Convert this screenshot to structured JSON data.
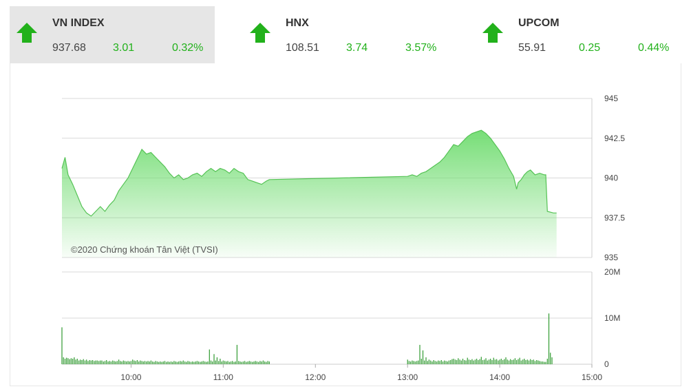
{
  "tabs": [
    {
      "name": "VN INDEX",
      "value": "937.68",
      "change": "3.01",
      "pct": "0.32%",
      "direction": "up",
      "active": true
    },
    {
      "name": "HNX",
      "value": "108.51",
      "change": "3.74",
      "pct": "3.57%",
      "direction": "up",
      "active": false
    },
    {
      "name": "UPCOM",
      "value": "55.91",
      "change": "0.25",
      "pct": "0.44%",
      "direction": "up",
      "active": false
    }
  ],
  "colors": {
    "up": "#22b11b",
    "area": "#72e072",
    "line": "#55c255",
    "volume": "#2f9a2f"
  },
  "chart_data": {
    "type": "area",
    "credit": "©2020 Chứng khoán Tân Việt (TVSI)",
    "price": {
      "ylim": [
        935,
        945
      ],
      "yticks": [
        "945",
        "942.5",
        "940",
        "937.5",
        "935"
      ],
      "points": [
        [
          "09:15",
          940.6
        ],
        [
          "09:17",
          941.3
        ],
        [
          "09:19",
          940.2
        ],
        [
          "09:22",
          939.6
        ],
        [
          "09:25",
          938.9
        ],
        [
          "09:28",
          938.2
        ],
        [
          "09:31",
          937.8
        ],
        [
          "09:34",
          937.6
        ],
        [
          "09:37",
          937.9
        ],
        [
          "09:40",
          938.2
        ],
        [
          "09:43",
          937.9
        ],
        [
          "09:46",
          938.3
        ],
        [
          "09:49",
          938.6
        ],
        [
          "09:52",
          939.2
        ],
        [
          "09:55",
          939.6
        ],
        [
          "09:58",
          940.0
        ],
        [
          "10:01",
          940.6
        ],
        [
          "10:04",
          941.2
        ],
        [
          "10:07",
          941.8
        ],
        [
          "10:10",
          941.5
        ],
        [
          "10:13",
          941.6
        ],
        [
          "10:16",
          941.3
        ],
        [
          "10:19",
          941.0
        ],
        [
          "10:22",
          940.7
        ],
        [
          "10:25",
          940.3
        ],
        [
          "10:28",
          940.0
        ],
        [
          "10:31",
          940.2
        ],
        [
          "10:34",
          939.9
        ],
        [
          "10:37",
          940.0
        ],
        [
          "10:40",
          940.2
        ],
        [
          "10:43",
          940.3
        ],
        [
          "10:46",
          940.1
        ],
        [
          "10:49",
          940.4
        ],
        [
          "10:52",
          940.6
        ],
        [
          "10:55",
          940.4
        ],
        [
          "10:58",
          940.6
        ],
        [
          "11:01",
          940.5
        ],
        [
          "11:04",
          940.3
        ],
        [
          "11:07",
          940.6
        ],
        [
          "11:10",
          940.4
        ],
        [
          "11:13",
          940.3
        ],
        [
          "11:16",
          939.9
        ],
        [
          "11:19",
          939.8
        ],
        [
          "11:22",
          939.7
        ],
        [
          "11:25",
          939.6
        ],
        [
          "11:28",
          939.8
        ],
        [
          "11:30",
          939.9
        ],
        [
          "13:00",
          940.1
        ],
        [
          "13:03",
          940.2
        ],
        [
          "13:06",
          940.1
        ],
        [
          "13:09",
          940.3
        ],
        [
          "13:12",
          940.4
        ],
        [
          "13:15",
          940.6
        ],
        [
          "13:18",
          940.8
        ],
        [
          "13:21",
          941.0
        ],
        [
          "13:24",
          941.3
        ],
        [
          "13:27",
          941.7
        ],
        [
          "13:30",
          942.1
        ],
        [
          "13:33",
          942.0
        ],
        [
          "13:36",
          942.3
        ],
        [
          "13:39",
          942.6
        ],
        [
          "13:42",
          942.8
        ],
        [
          "13:45",
          942.9
        ],
        [
          "13:48",
          943.0
        ],
        [
          "13:51",
          942.8
        ],
        [
          "13:54",
          942.5
        ],
        [
          "13:57",
          942.1
        ],
        [
          "14:00",
          941.7
        ],
        [
          "14:03",
          941.2
        ],
        [
          "14:06",
          940.6
        ],
        [
          "14:09",
          940.1
        ],
        [
          "14:11",
          939.3
        ],
        [
          "14:12",
          939.7
        ],
        [
          "14:14",
          939.9
        ],
        [
          "14:16",
          940.2
        ],
        [
          "14:18",
          940.4
        ],
        [
          "14:20",
          940.5
        ],
        [
          "14:23",
          940.2
        ],
        [
          "14:26",
          940.3
        ],
        [
          "14:29",
          940.2
        ],
        [
          "14:30",
          940.2
        ],
        [
          "14:31",
          937.9
        ],
        [
          "14:35",
          937.8
        ],
        [
          "14:37",
          937.8
        ]
      ]
    },
    "volume": {
      "ylim": [
        0,
        20
      ],
      "yticks": [
        "20M",
        "10M",
        "0"
      ],
      "unit": "M",
      "points": [
        [
          "09:15",
          8.0
        ],
        [
          "09:16",
          1.5
        ],
        [
          "09:17",
          1.2
        ],
        [
          "09:18",
          1.4
        ],
        [
          "09:19",
          1.3
        ],
        [
          "09:20",
          1.1
        ],
        [
          "09:21",
          1.3
        ],
        [
          "09:22",
          1.2
        ],
        [
          "09:23",
          1.5
        ],
        [
          "09:24",
          1.0
        ],
        [
          "09:25",
          1.2
        ],
        [
          "09:26",
          0.8
        ],
        [
          "09:27",
          1.0
        ],
        [
          "09:28",
          0.9
        ],
        [
          "09:29",
          1.1
        ],
        [
          "09:30",
          0.8
        ],
        [
          "09:31",
          1.0
        ],
        [
          "09:32",
          0.7
        ],
        [
          "09:33",
          0.9
        ],
        [
          "09:34",
          0.8
        ],
        [
          "09:35",
          0.9
        ],
        [
          "09:36",
          0.7
        ],
        [
          "09:37",
          0.8
        ],
        [
          "09:38",
          0.8
        ],
        [
          "09:39",
          0.7
        ],
        [
          "09:40",
          0.8
        ],
        [
          "09:41",
          0.8
        ],
        [
          "09:42",
          0.6
        ],
        [
          "09:43",
          0.7
        ],
        [
          "09:44",
          0.9
        ],
        [
          "09:45",
          0.6
        ],
        [
          "09:46",
          0.7
        ],
        [
          "09:47",
          0.6
        ],
        [
          "09:48",
          0.8
        ],
        [
          "09:49",
          0.7
        ],
        [
          "09:50",
          0.6
        ],
        [
          "09:51",
          0.7
        ],
        [
          "09:52",
          1.0
        ],
        [
          "09:53",
          0.7
        ],
        [
          "09:54",
          0.6
        ],
        [
          "09:55",
          0.8
        ],
        [
          "09:56",
          0.7
        ],
        [
          "09:57",
          0.6
        ],
        [
          "09:58",
          0.7
        ],
        [
          "09:59",
          0.6
        ],
        [
          "10:00",
          0.7
        ],
        [
          "10:01",
          1.0
        ],
        [
          "10:02",
          0.8
        ],
        [
          "10:03",
          0.7
        ],
        [
          "10:04",
          0.9
        ],
        [
          "10:05",
          0.6
        ],
        [
          "10:06",
          0.8
        ],
        [
          "10:07",
          0.7
        ],
        [
          "10:08",
          0.6
        ],
        [
          "10:09",
          0.7
        ],
        [
          "10:10",
          0.6
        ],
        [
          "10:11",
          0.7
        ],
        [
          "10:12",
          0.6
        ],
        [
          "10:13",
          0.8
        ],
        [
          "10:14",
          0.6
        ],
        [
          "10:15",
          0.5
        ],
        [
          "10:16",
          0.7
        ],
        [
          "10:17",
          0.6
        ],
        [
          "10:18",
          0.5
        ],
        [
          "10:19",
          0.6
        ],
        [
          "10:20",
          0.5
        ],
        [
          "10:21",
          0.6
        ],
        [
          "10:22",
          0.7
        ],
        [
          "10:23",
          0.5
        ],
        [
          "10:24",
          0.6
        ],
        [
          "10:25",
          0.5
        ],
        [
          "10:26",
          0.6
        ],
        [
          "10:27",
          0.5
        ],
        [
          "10:28",
          0.7
        ],
        [
          "10:29",
          0.6
        ],
        [
          "10:30",
          0.5
        ],
        [
          "10:31",
          0.6
        ],
        [
          "10:32",
          0.7
        ],
        [
          "10:33",
          0.6
        ],
        [
          "10:34",
          0.8
        ],
        [
          "10:35",
          0.6
        ],
        [
          "10:36",
          0.5
        ],
        [
          "10:37",
          0.7
        ],
        [
          "10:38",
          0.6
        ],
        [
          "10:39",
          0.5
        ],
        [
          "10:40",
          0.6
        ],
        [
          "10:41",
          0.5
        ],
        [
          "10:42",
          0.6
        ],
        [
          "10:43",
          0.7
        ],
        [
          "10:44",
          0.6
        ],
        [
          "10:45",
          0.5
        ],
        [
          "10:46",
          0.6
        ],
        [
          "10:47",
          0.7
        ],
        [
          "10:48",
          0.6
        ],
        [
          "10:49",
          0.5
        ],
        [
          "10:50",
          0.6
        ],
        [
          "10:51",
          3.2
        ],
        [
          "10:52",
          0.8
        ],
        [
          "10:53",
          0.6
        ],
        [
          "10:54",
          2.2
        ],
        [
          "10:55",
          0.8
        ],
        [
          "10:56",
          1.5
        ],
        [
          "10:57",
          0.7
        ],
        [
          "10:58",
          1.2
        ],
        [
          "10:59",
          0.6
        ],
        [
          "11:00",
          0.8
        ],
        [
          "11:01",
          0.7
        ],
        [
          "11:02",
          0.6
        ],
        [
          "11:03",
          0.7
        ],
        [
          "11:04",
          0.5
        ],
        [
          "11:05",
          0.6
        ],
        [
          "11:06",
          0.7
        ],
        [
          "11:07",
          0.5
        ],
        [
          "11:08",
          0.6
        ],
        [
          "11:09",
          4.2
        ],
        [
          "11:10",
          0.7
        ],
        [
          "11:11",
          0.6
        ],
        [
          "11:12",
          0.5
        ],
        [
          "11:13",
          0.6
        ],
        [
          "11:14",
          0.7
        ],
        [
          "11:15",
          0.5
        ],
        [
          "11:16",
          0.6
        ],
        [
          "11:17",
          0.7
        ],
        [
          "11:18",
          0.6
        ],
        [
          "11:19",
          0.5
        ],
        [
          "11:20",
          0.6
        ],
        [
          "11:21",
          0.7
        ],
        [
          "11:22",
          0.6
        ],
        [
          "11:23",
          0.5
        ],
        [
          "11:24",
          0.7
        ],
        [
          "11:25",
          0.6
        ],
        [
          "11:26",
          0.8
        ],
        [
          "11:27",
          0.6
        ],
        [
          "11:28",
          0.5
        ],
        [
          "11:29",
          0.7
        ],
        [
          "11:30",
          0.6
        ],
        [
          "13:00",
          1.0
        ],
        [
          "13:01",
          0.7
        ],
        [
          "13:02",
          0.6
        ],
        [
          "13:03",
          0.8
        ],
        [
          "13:04",
          0.7
        ],
        [
          "13:05",
          0.6
        ],
        [
          "13:06",
          0.7
        ],
        [
          "13:07",
          0.8
        ],
        [
          "13:08",
          4.2
        ],
        [
          "13:09",
          1.2
        ],
        [
          "13:10",
          3.0
        ],
        [
          "13:11",
          0.8
        ],
        [
          "13:12",
          1.5
        ],
        [
          "13:13",
          0.7
        ],
        [
          "13:14",
          1.0
        ],
        [
          "13:15",
          0.8
        ],
        [
          "13:16",
          0.6
        ],
        [
          "13:17",
          0.9
        ],
        [
          "13:18",
          0.7
        ],
        [
          "13:19",
          0.6
        ],
        [
          "13:20",
          0.8
        ],
        [
          "13:21",
          0.7
        ],
        [
          "13:22",
          0.9
        ],
        [
          "13:23",
          0.6
        ],
        [
          "13:24",
          0.8
        ],
        [
          "13:25",
          0.7
        ],
        [
          "13:26",
          0.6
        ],
        [
          "13:27",
          0.8
        ],
        [
          "13:28",
          0.9
        ],
        [
          "13:29",
          1.1
        ],
        [
          "13:30",
          1.2
        ],
        [
          "13:31",
          1.0
        ],
        [
          "13:32",
          0.9
        ],
        [
          "13:33",
          1.3
        ],
        [
          "13:34",
          1.0
        ],
        [
          "13:35",
          0.8
        ],
        [
          "13:36",
          1.2
        ],
        [
          "13:37",
          0.9
        ],
        [
          "13:38",
          0.8
        ],
        [
          "13:39",
          1.4
        ],
        [
          "13:40",
          1.0
        ],
        [
          "13:41",
          0.9
        ],
        [
          "13:42",
          1.1
        ],
        [
          "13:43",
          0.8
        ],
        [
          "13:44",
          1.0
        ],
        [
          "13:45",
          1.2
        ],
        [
          "13:46",
          0.9
        ],
        [
          "13:47",
          1.1
        ],
        [
          "13:48",
          1.6
        ],
        [
          "13:49",
          0.9
        ],
        [
          "13:50",
          1.0
        ],
        [
          "13:51",
          1.3
        ],
        [
          "13:52",
          0.8
        ],
        [
          "13:53",
          1.0
        ],
        [
          "13:54",
          1.2
        ],
        [
          "13:55",
          0.9
        ],
        [
          "13:56",
          1.4
        ],
        [
          "13:57",
          1.0
        ],
        [
          "13:58",
          1.1
        ],
        [
          "13:59",
          0.8
        ],
        [
          "14:00",
          1.0
        ],
        [
          "14:01",
          1.2
        ],
        [
          "14:02",
          0.9
        ],
        [
          "14:03",
          1.1
        ],
        [
          "14:04",
          1.5
        ],
        [
          "14:05",
          1.0
        ],
        [
          "14:06",
          0.8
        ],
        [
          "14:07",
          1.1
        ],
        [
          "14:08",
          0.9
        ],
        [
          "14:09",
          1.0
        ],
        [
          "14:10",
          1.3
        ],
        [
          "14:11",
          0.9
        ],
        [
          "14:12",
          1.1
        ],
        [
          "14:13",
          1.4
        ],
        [
          "14:14",
          0.8
        ],
        [
          "14:15",
          1.0
        ],
        [
          "14:16",
          1.2
        ],
        [
          "14:17",
          0.9
        ],
        [
          "14:18",
          1.0
        ],
        [
          "14:19",
          0.8
        ],
        [
          "14:20",
          1.1
        ],
        [
          "14:21",
          0.9
        ],
        [
          "14:22",
          1.0
        ],
        [
          "14:23",
          0.7
        ],
        [
          "14:24",
          0.9
        ],
        [
          "14:25",
          0.8
        ],
        [
          "14:26",
          0.7
        ],
        [
          "14:27",
          0.6
        ],
        [
          "14:28",
          0.6
        ],
        [
          "14:29",
          0.5
        ],
        [
          "14:30",
          0.5
        ],
        [
          "14:31",
          1.2
        ],
        [
          "14:32",
          11.0
        ],
        [
          "14:33",
          2.5
        ],
        [
          "14:34",
          1.5
        ]
      ]
    },
    "xticks": [
      "10:00",
      "11:00",
      "12:00",
      "13:00",
      "14:00",
      "15:00"
    ],
    "xlim": [
      "09:15",
      "15:00"
    ]
  }
}
